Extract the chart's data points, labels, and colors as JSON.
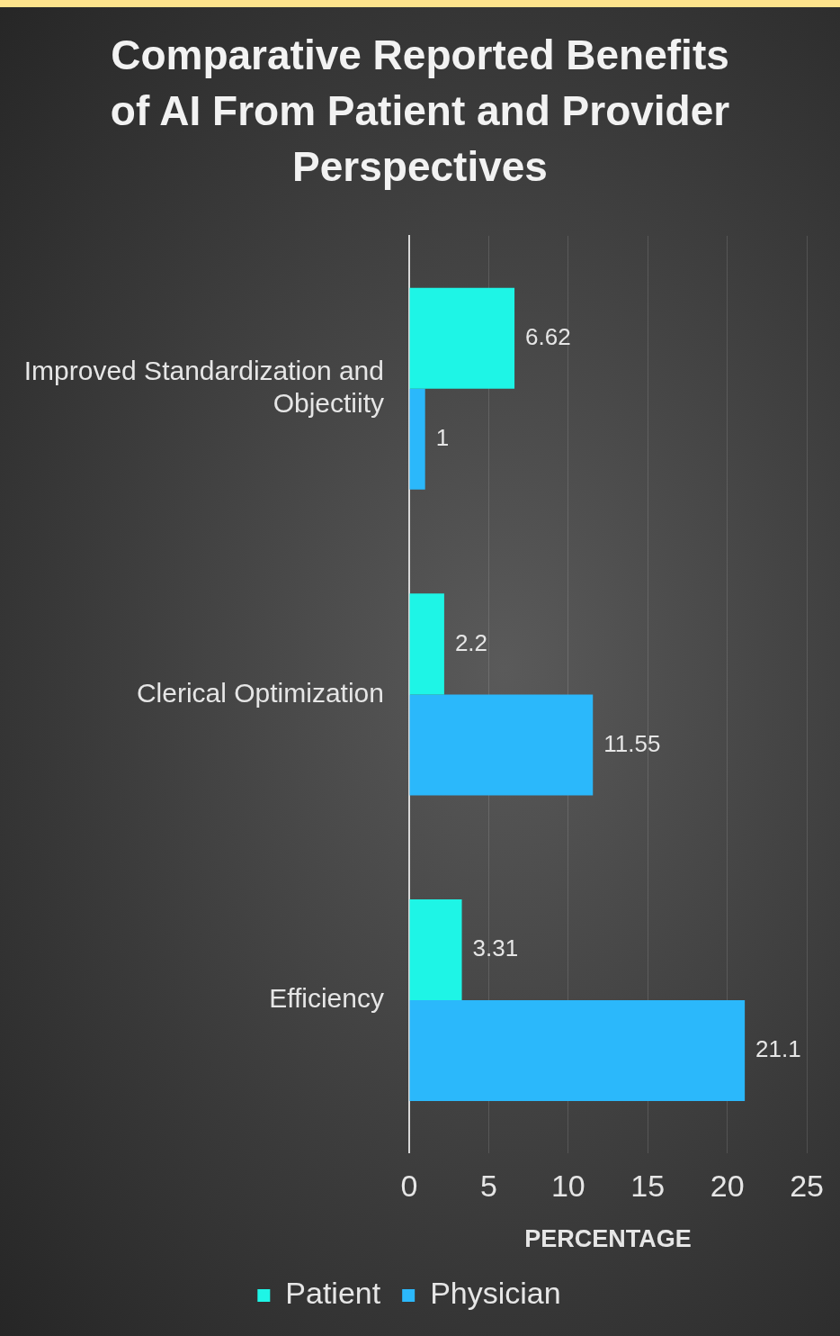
{
  "chart_data": {
    "type": "bar",
    "orientation": "horizontal",
    "title": "Comparative Reported Benefits of AI From Patient and Provider Perspectives",
    "categories": [
      "Improved Standardization and Objectiity",
      "Clerical Optimization",
      "Efficiency"
    ],
    "series": [
      {
        "name": "Patient",
        "color": "#1ef5e6",
        "values": [
          6.62,
          2.2,
          3.31
        ]
      },
      {
        "name": "Physician",
        "color": "#2bb8fb",
        "values": [
          1,
          11.55,
          21.1
        ]
      }
    ],
    "xlim": [
      0,
      25
    ],
    "xticks": [
      0,
      5,
      10,
      15,
      20,
      25
    ],
    "xlabel": "PERCENTAGE",
    "grid": "x",
    "legend": "bottom",
    "data_labels": true
  }
}
